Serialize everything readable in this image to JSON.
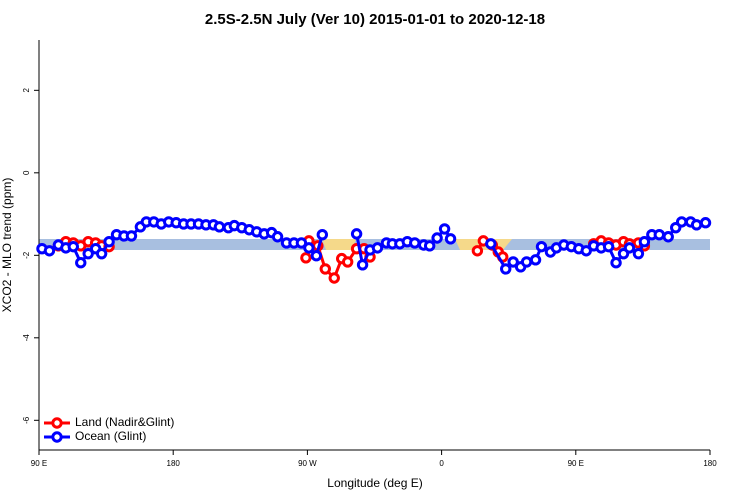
{
  "chart_data": {
    "type": "line",
    "title": "2.5S-2.5N July (Ver 10)   2015-01-01 to 2020-12-18",
    "x_label": "Longitude (deg E)",
    "y_label": "XCO2 - MLO trend (ppm)",
    "xlim": [
      90,
      540
    ],
    "ylim": [
      -6.72,
      3.22
    ],
    "xticks": [
      {
        "value": 90,
        "label": "90 E"
      },
      180,
      {
        "value": 270,
        "label": "90 W"
      },
      {
        "value": 360,
        "label": "0"
      },
      {
        "value": 450,
        "label": "90 E"
      },
      {
        "value": 540,
        "label": "180"
      }
    ],
    "yticks": [
      2,
      0,
      -2,
      -4,
      -6
    ],
    "legend": "bottom-left",
    "series": [
      {
        "name": "Land (Nadir&Glint)",
        "color": "#ff0000",
        "x": [
          103,
          108,
          113,
          118,
          123,
          128,
          132,
          137,
          null,
          269,
          271,
          277,
          282,
          288,
          293,
          297,
          303,
          308,
          312,
          null,
          384,
          388,
          394,
          398,
          401,
          null,
          462,
          467,
          472,
          477,
          482,
          486,
          492,
          496
        ],
        "values": [
          -1.77,
          -1.67,
          -1.7,
          -1.77,
          -1.67,
          -1.7,
          -1.77,
          -1.79,
          null,
          -2.06,
          -1.65,
          -1.77,
          -2.33,
          -2.55,
          -2.08,
          -2.16,
          -1.84,
          -1.84,
          -2.04,
          null,
          -1.89,
          -1.65,
          -1.75,
          -1.92,
          -2.04,
          null,
          -1.72,
          -1.65,
          -1.7,
          -1.75,
          -1.67,
          -1.72,
          -1.7,
          -1.77
        ]
      },
      {
        "name": "Ocean (Glint)",
        "color": "#0000ff",
        "x": [
          92,
          97,
          103,
          108,
          113,
          118,
          123,
          128,
          132,
          137,
          142,
          147,
          152,
          158,
          162,
          167,
          172,
          177,
          182,
          187,
          192,
          197,
          202,
          207,
          211,
          217,
          221,
          226,
          231,
          236,
          241,
          246,
          250,
          256,
          261,
          266,
          271,
          276,
          280,
          null,
          303,
          307,
          312,
          317,
          323,
          327,
          332,
          337,
          342,
          348,
          352,
          357,
          362,
          366,
          null,
          393,
          403,
          408,
          413,
          417,
          423,
          427,
          433,
          437,
          442,
          447,
          452,
          457,
          462,
          467,
          472,
          477,
          482,
          486,
          492,
          496,
          501,
          506,
          512,
          517,
          521,
          527,
          531,
          537
        ],
        "values": [
          -1.84,
          -1.89,
          -1.75,
          -1.82,
          -1.79,
          -2.18,
          -1.96,
          -1.84,
          -1.96,
          -1.67,
          -1.5,
          -1.53,
          -1.53,
          -1.31,
          -1.19,
          -1.19,
          -1.24,
          -1.19,
          -1.21,
          -1.24,
          -1.24,
          -1.24,
          -1.26,
          -1.26,
          -1.31,
          -1.33,
          -1.28,
          -1.33,
          -1.38,
          -1.43,
          -1.48,
          -1.45,
          -1.55,
          -1.7,
          -1.7,
          -1.7,
          -1.82,
          -2.01,
          -1.5,
          null,
          -1.48,
          -2.23,
          -1.87,
          -1.82,
          -1.7,
          -1.72,
          -1.72,
          -1.67,
          -1.7,
          -1.75,
          -1.77,
          -1.58,
          -1.36,
          -1.6,
          null,
          -1.72,
          -2.33,
          -2.16,
          -2.28,
          -2.16,
          -2.11,
          -1.79,
          -1.92,
          -1.82,
          -1.75,
          -1.79,
          -1.84,
          -1.89,
          -1.77,
          -1.82,
          -1.79,
          -2.18,
          -1.96,
          -1.82,
          -1.96,
          -1.67,
          -1.5,
          -1.5,
          -1.55,
          -1.33,
          -1.19,
          -1.19,
          -1.26,
          -1.21
        ]
      }
    ]
  }
}
